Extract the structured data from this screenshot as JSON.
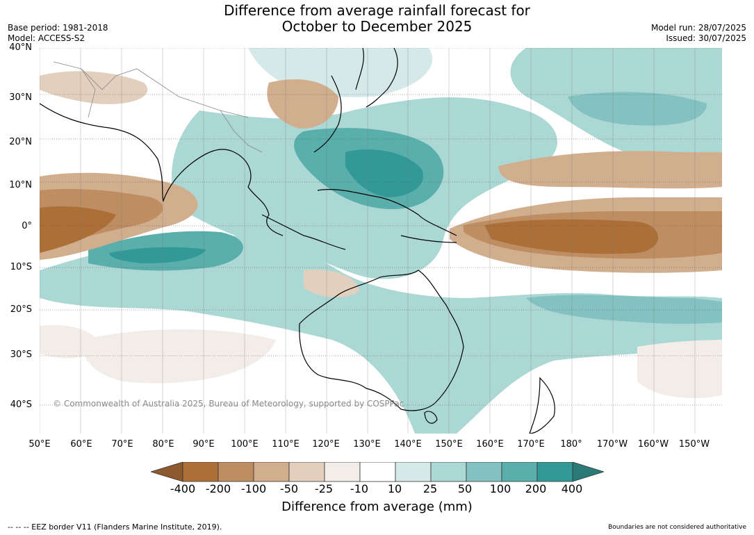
{
  "title_line1": "Difference from average rainfall forecast for",
  "title_line2": "October to December 2025",
  "base_period": "Base period: 1981-2018",
  "model": "Model: ACCESS-S2",
  "model_run": "Model run: 28/07/2025",
  "issued": "Issued: 30/07/2025",
  "copyright": "© Commonwealth of Australia 2025, Bureau of Meteorology, supported by COSPPac",
  "lat_labels": [
    "40°N",
    "30°N",
    "20°N",
    "10°N",
    "0°",
    "10°S",
    "20°S",
    "30°S",
    "40°S"
  ],
  "lon_labels": [
    "50°E",
    "60°E",
    "70°E",
    "80°E",
    "90°E",
    "100°E",
    "110°E",
    "120°E",
    "130°E",
    "140°E",
    "150°E",
    "160°E",
    "170°E",
    "180°",
    "170°W",
    "160°W",
    "150°W"
  ],
  "colorbar": {
    "title": "Difference from average (mm)",
    "tick_labels": [
      "-400",
      "-200",
      "-100",
      "-50",
      "-25",
      "-10",
      "10",
      "25",
      "50",
      "100",
      "200",
      "400"
    ],
    "colors": {
      "under": "#8c5a2e",
      "bins": [
        "#ab6f37",
        "#bf8d62",
        "#d1ae8d",
        "#e2cfbd",
        "#f2ede8",
        "#ffffff",
        "#d4e9e8",
        "#abd7d5",
        "#83c2c0",
        "#5aaeab",
        "#329996"
      ],
      "over": "#2a7a78"
    }
  },
  "footer_left": "--  --  -- EEZ border V11 (Flanders Marine Institute, 2019).",
  "footer_right": "Boundaries are not considered authoritative"
}
